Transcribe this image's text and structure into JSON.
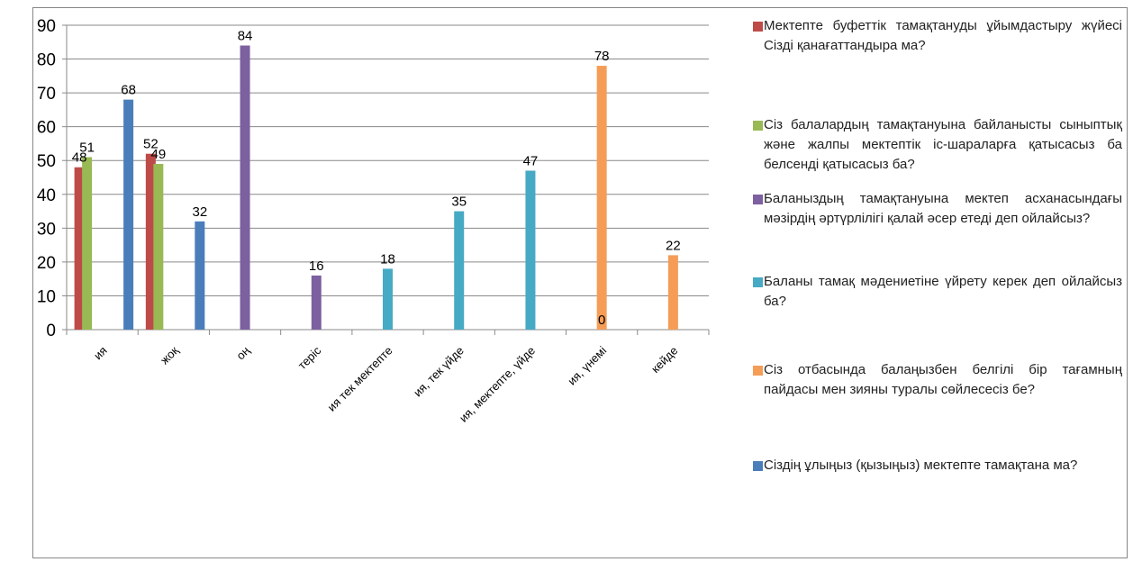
{
  "chart_data": {
    "type": "bar",
    "categories": [
      "ия",
      "жоқ",
      "оң",
      "теріс",
      "ия тек мектепте",
      "ия, тек  үйде",
      "ия, мектепте, үйде",
      "ия, үнемі",
      "кейде"
    ],
    "ylim": [
      0,
      90
    ],
    "yticks": [
      "0",
      "10",
      "20",
      "30",
      "40",
      "50",
      "60",
      "70",
      "80",
      "90"
    ],
    "grid": true,
    "legend_position": "right",
    "series": [
      {
        "name": "Мектепте  буфеттік тамақтануды ұйымдастыру жүйесі Сізді қанағаттандыра ма?",
        "color": "#BE4B48",
        "values": [
          48,
          52,
          null,
          null,
          null,
          null,
          null,
          null,
          null
        ]
      },
      {
        "name": "Сіз балалардың тамақтануына байланысты сыныптық және жалпы мектептік іс-шараларға қатысасыз ба белсенді  қатысасыз  ба?",
        "color": "#98B954",
        "values": [
          51,
          49,
          null,
          null,
          null,
          null,
          null,
          null,
          null
        ]
      },
      {
        "name": "Баланыздың тамақтануына мектеп асханасындағы мәзірдің  әртүрлілігі  қалай әсер етеді деп ойлайсыз?",
        "color": "#7D60A0",
        "values": [
          null,
          null,
          84,
          16,
          null,
          null,
          null,
          null,
          null
        ]
      },
      {
        "name": "Баланы тамақ мәдениетіне үйрету керек деп ойлайсыз ба?",
        "color": "#46AAC4",
        "values": [
          null,
          null,
          null,
          null,
          18,
          35,
          47,
          0,
          null
        ]
      },
      {
        "name": "Сіз отбасында  балаңызбен  белгілі бір тағамның  пайдасы мен зияны   туралы сөйлесесіз бе?",
        "color": "#F59D56",
        "values": [
          null,
          null,
          null,
          null,
          null,
          null,
          null,
          78,
          22
        ]
      },
      {
        "name": "Сіздің ұлыңыз  (қызыңыз) мектепте тамақтана ма?",
        "color": "#4A7EBB",
        "values": [
          68,
          32,
          null,
          null,
          null,
          null,
          null,
          null,
          null
        ]
      }
    ],
    "legend_order": [
      0,
      1,
      2,
      3,
      4,
      5
    ]
  }
}
